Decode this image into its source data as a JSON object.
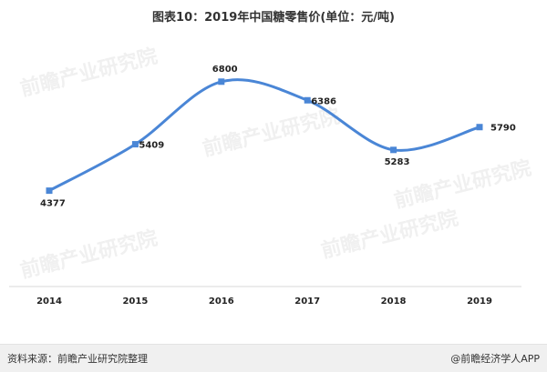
{
  "header": {
    "title": "图表10：2019年中国糖零售价(单位：元/吨)"
  },
  "watermark": {
    "text": "前瞻产业研究院"
  },
  "footer": {
    "source": "资料来源：前瞻产业研究院整理",
    "brand": "@前瞻经济学人APP"
  },
  "chart_data": {
    "type": "line",
    "title": "图表10：2019年中国糖零售价(单位：元/吨)",
    "xlabel": "",
    "ylabel": "",
    "categories": [
      "2014",
      "2015",
      "2016",
      "2017",
      "2018",
      "2019"
    ],
    "series": [
      {
        "values": [
          4377,
          5409,
          6800,
          6386,
          5283,
          5790
        ],
        "color": "#4a86d6"
      }
    ],
    "ylim": [
      3500,
      7200
    ],
    "grid": false,
    "legend": "none",
    "smooth": true
  }
}
